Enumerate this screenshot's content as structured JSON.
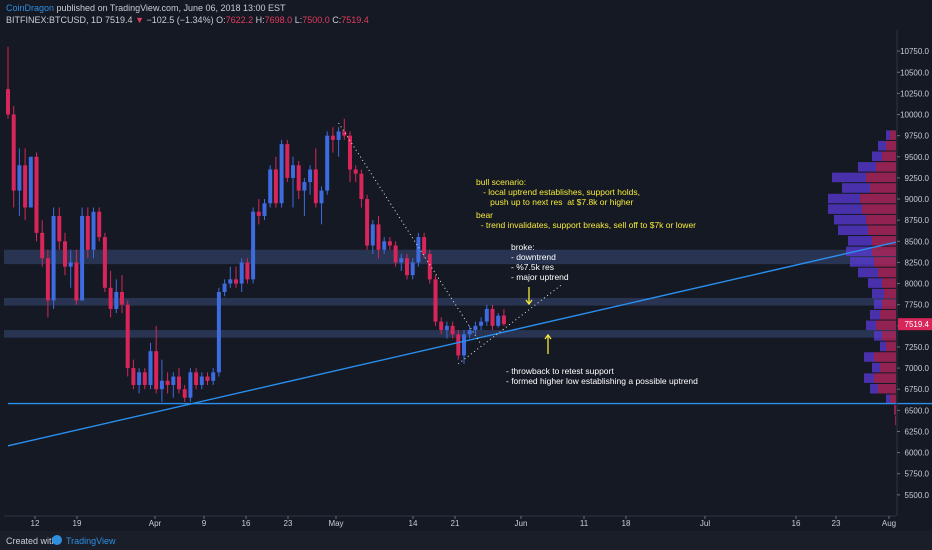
{
  "header": {
    "author": "CoinDragon",
    "published": " published on TradingView.com, June 06, 2018 13:00 EST",
    "symbol": "BITFINEX:BTCUSD, 1D",
    "last": "7519.4",
    "arrow": "▼",
    "change": "−102.5 (−1.34%)",
    "o_label": "O:",
    "o_val": "7622.2",
    "h_label": "H:",
    "h_val": "7698.0",
    "l_label": "L:",
    "l_val": "7500.0",
    "c_label": "C:",
    "c_val": "7519.4"
  },
  "footer": {
    "created_with": "Created with",
    "brand": "TradingView"
  },
  "colors": {
    "bg": "#151924",
    "up": "#3d6be0",
    "down": "#d8255a",
    "trend": "#2a8fef",
    "annotation": "#f5ea3a",
    "zone": "#2b3a59"
  },
  "chart_data": {
    "type": "candlestick",
    "symbol": "BITFINEX:BTCUSD",
    "timeframe": "1D",
    "ylim": [
      5250,
      11000
    ],
    "y_ticks": [
      "10750.0",
      "10500.0",
      "10250.0",
      "10000.0",
      "9750.0",
      "9500.0",
      "9250.0",
      "9000.0",
      "8750.0",
      "8500.0",
      "8250.0",
      "8000.0",
      "7750.0",
      "7500.0",
      "7250.0",
      "7000.0",
      "6750.0",
      "6500.0",
      "6250.0",
      "6000.0",
      "5750.0",
      "5500.0"
    ],
    "x_ticks": [
      "12",
      "19",
      "Apr",
      "9",
      "16",
      "23",
      "May",
      "14",
      "21",
      "Jun",
      "11",
      "18",
      "Jul",
      "16",
      "23",
      "Aug"
    ],
    "last_price_label": "7519.4",
    "candles": [
      [
        10300,
        10800,
        9950,
        10000
      ],
      [
        10000,
        10100,
        8900,
        9100
      ],
      [
        9100,
        9600,
        8800,
        9400
      ],
      [
        9400,
        9600,
        8750,
        8900
      ],
      [
        8900,
        9500,
        8900,
        9500
      ],
      [
        9500,
        9550,
        8500,
        8600
      ],
      [
        8600,
        8750,
        8200,
        8300
      ],
      [
        8300,
        8400,
        7600,
        7800
      ],
      [
        7800,
        8900,
        7700,
        8800
      ],
      [
        8800,
        8900,
        8400,
        8500
      ],
      [
        8500,
        8600,
        8100,
        8200
      ],
      [
        8200,
        8400,
        7950,
        8250
      ],
      [
        8250,
        8400,
        7750,
        7800
      ],
      [
        7800,
        8900,
        7800,
        8800
      ],
      [
        8800,
        8900,
        8300,
        8400
      ],
      [
        8400,
        8900,
        8300,
        8850
      ],
      [
        8850,
        8900,
        8500,
        8550
      ],
      [
        8550,
        8600,
        7900,
        7950
      ],
      [
        7950,
        8150,
        7600,
        7700
      ],
      [
        7700,
        8050,
        7650,
        7900
      ],
      [
        7900,
        8100,
        7650,
        7750
      ],
      [
        7750,
        7800,
        6900,
        7000
      ],
      [
        7000,
        7100,
        6750,
        6800
      ],
      [
        6800,
        7000,
        6700,
        6950
      ],
      [
        6950,
        7000,
        6750,
        6800
      ],
      [
        6800,
        7300,
        6750,
        7200
      ],
      [
        7200,
        7500,
        6700,
        6750
      ],
      [
        6750,
        7100,
        6600,
        6850
      ],
      [
        6850,
        6950,
        6700,
        6800
      ],
      [
        6800,
        6950,
        6650,
        6900
      ],
      [
        6900,
        7000,
        6700,
        6750
      ],
      [
        6750,
        6800,
        6600,
        6650
      ],
      [
        6650,
        7000,
        6600,
        6950
      ],
      [
        6950,
        7000,
        6750,
        6800
      ],
      [
        6800,
        6950,
        6750,
        6900
      ],
      [
        6900,
        6950,
        6800,
        6850
      ],
      [
        6850,
        7000,
        6800,
        6950
      ],
      [
        6950,
        7950,
        6900,
        7900
      ],
      [
        7900,
        8050,
        7850,
        8000
      ],
      [
        8000,
        8200,
        7950,
        8050
      ],
      [
        8050,
        8200,
        7950,
        8000
      ],
      [
        8000,
        8300,
        7900,
        8250
      ],
      [
        8250,
        8300,
        8000,
        8050
      ],
      [
        8050,
        8900,
        8000,
        8850
      ],
      [
        8850,
        9000,
        8700,
        8800
      ],
      [
        8800,
        9000,
        8750,
        8950
      ],
      [
        8950,
        9400,
        8900,
        9350
      ],
      [
        9350,
        9500,
        8900,
        8950
      ],
      [
        8950,
        9700,
        8900,
        9650
      ],
      [
        9650,
        9700,
        9200,
        9250
      ],
      [
        9250,
        9500,
        8900,
        9400
      ],
      [
        9400,
        9450,
        9000,
        9100
      ],
      [
        9100,
        9250,
        8800,
        9200
      ],
      [
        9200,
        9400,
        9050,
        9350
      ],
      [
        9350,
        9600,
        8900,
        8950
      ],
      [
        8950,
        9150,
        8700,
        9100
      ],
      [
        9100,
        9800,
        9050,
        9750
      ],
      [
        9750,
        9850,
        9550,
        9700
      ],
      [
        9700,
        9850,
        9500,
        9800
      ],
      [
        9800,
        9950,
        9700,
        9750
      ],
      [
        9750,
        9800,
        9200,
        9350
      ],
      [
        9350,
        9400,
        9200,
        9300
      ],
      [
        9300,
        9350,
        8900,
        9000
      ],
      [
        9000,
        9050,
        8400,
        8450
      ],
      [
        8450,
        8750,
        8350,
        8700
      ],
      [
        8700,
        8800,
        8300,
        8400
      ],
      [
        8400,
        8550,
        8350,
        8500
      ],
      [
        8500,
        8550,
        8400,
        8450
      ],
      [
        8450,
        8500,
        8200,
        8250
      ],
      [
        8250,
        8350,
        8150,
        8300
      ],
      [
        8300,
        8350,
        8050,
        8100
      ],
      [
        8100,
        8300,
        8050,
        8250
      ],
      [
        8250,
        8600,
        8200,
        8550
      ],
      [
        8550,
        8600,
        8300,
        8350
      ],
      [
        8350,
        8400,
        8000,
        8050
      ],
      [
        8050,
        8100,
        7500,
        7550
      ],
      [
        7550,
        7600,
        7400,
        7450
      ],
      [
        7450,
        7550,
        7350,
        7500
      ],
      [
        7500,
        7550,
        7350,
        7400
      ],
      [
        7400,
        7450,
        7100,
        7150
      ],
      [
        7150,
        7450,
        7050,
        7400
      ],
      [
        7400,
        7500,
        7350,
        7450
      ],
      [
        7450,
        7550,
        7400,
        7500
      ],
      [
        7500,
        7600,
        7450,
        7550
      ],
      [
        7550,
        7750,
        7500,
        7700
      ],
      [
        7700,
        7750,
        7450,
        7500
      ],
      [
        7500,
        7650,
        7480,
        7620
      ],
      [
        7622.2,
        7698,
        7500,
        7519.4
      ]
    ],
    "volume_profile": [
      {
        "price": 9750,
        "up": 4,
        "down": 6
      },
      {
        "price": 9625,
        "up": 8,
        "down": 10
      },
      {
        "price": 9500,
        "up": 10,
        "down": 14
      },
      {
        "price": 9375,
        "up": 18,
        "down": 20
      },
      {
        "price": 9250,
        "up": 34,
        "down": 30
      },
      {
        "price": 9125,
        "up": 28,
        "down": 26
      },
      {
        "price": 9000,
        "up": 32,
        "down": 36
      },
      {
        "price": 8875,
        "up": 34,
        "down": 34
      },
      {
        "price": 8750,
        "up": 32,
        "down": 30
      },
      {
        "price": 8625,
        "up": 30,
        "down": 28
      },
      {
        "price": 8500,
        "up": 24,
        "down": 24
      },
      {
        "price": 8375,
        "up": 26,
        "down": 24
      },
      {
        "price": 8250,
        "up": 24,
        "down": 22
      },
      {
        "price": 8125,
        "up": 20,
        "down": 18
      },
      {
        "price": 8000,
        "up": 14,
        "down": 14
      },
      {
        "price": 7875,
        "up": 12,
        "down": 12
      },
      {
        "price": 7750,
        "up": 8,
        "down": 14
      },
      {
        "price": 7625,
        "up": 10,
        "down": 16
      },
      {
        "price": 7500,
        "up": 10,
        "down": 20
      },
      {
        "price": 7375,
        "up": 8,
        "down": 14
      },
      {
        "price": 7250,
        "up": 6,
        "down": 10
      },
      {
        "price": 7125,
        "up": 10,
        "down": 22
      },
      {
        "price": 7000,
        "up": 8,
        "down": 16
      },
      {
        "price": 6875,
        "up": 10,
        "down": 22
      },
      {
        "price": 6750,
        "up": 8,
        "down": 18
      },
      {
        "price": 6625,
        "up": 4,
        "down": 6
      },
      {
        "price": 6500,
        "up": 0,
        "down": 2
      },
      {
        "price": 6375,
        "up": 0,
        "down": 1
      }
    ],
    "zones": [
      {
        "low": 8230,
        "high": 8400
      },
      {
        "low": 7740,
        "high": 7830
      },
      {
        "low": 7360,
        "high": 7450
      }
    ],
    "lines": [
      {
        "style": "solid",
        "from": [
          0,
          6080
        ],
        "to": [
          "end",
          8490
        ]
      },
      {
        "style": "solid",
        "from": [
          0,
          6580
        ],
        "to": [
          205,
          6580
        ]
      },
      {
        "style": "dotted",
        "from": [
          58,
          9900
        ],
        "to": [
          83,
          7280
        ]
      },
      {
        "style": "dotted",
        "from": [
          79,
          7050
        ],
        "to": [
          97,
          7980
        ]
      }
    ],
    "annotations": [
      {
        "style": "yellow",
        "lines": [
          "bull scenario:",
          "   - local uptrend establishes, support holds,",
          "      push up to next res  at $7.8k or higher"
        ]
      },
      {
        "style": "yellow",
        "lines": [
          "bear",
          "  - trend invalidates, support breaks, sell off to $7k or lower"
        ]
      },
      {
        "style": "white",
        "lines": [
          "broke:",
          "- downtrend",
          "- %7.5k res",
          "- major uptrend"
        ]
      },
      {
        "style": "white",
        "lines": [
          "- throwback to retest support",
          "- formed higher low establishing a possible uptrend"
        ]
      }
    ]
  }
}
